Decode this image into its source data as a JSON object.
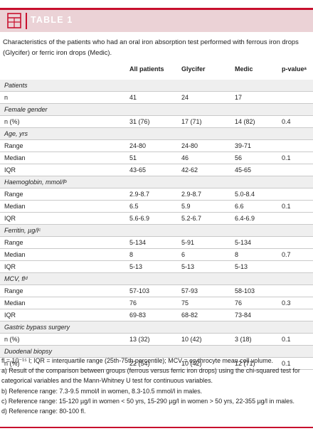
{
  "header": {
    "title": "TABLE 1"
  },
  "caption": "Characteristics of the patients who had an oral iron absorption test performed with ferrous iron drops (Glycifer) or ferric iron drops (Medic).",
  "columns": [
    "",
    "All patients",
    "Glycifer",
    "Medic",
    "p-valueᵃ"
  ],
  "rows": [
    {
      "type": "section",
      "label": "Patients"
    },
    {
      "type": "data",
      "label": "n",
      "all": "41",
      "glycifer": "24",
      "medic": "17",
      "p": ""
    },
    {
      "type": "section",
      "label": "Female gender"
    },
    {
      "type": "data",
      "label": "n (%)",
      "all": "31 (76)",
      "glycifer": "17 (71)",
      "medic": "14 (82)",
      "p": "0.4"
    },
    {
      "type": "section",
      "label": "Age, yrs"
    },
    {
      "type": "data",
      "label": "Range",
      "all": "24-80",
      "glycifer": "24-80",
      "medic": "39-71",
      "p": ""
    },
    {
      "type": "data",
      "label": "Median",
      "all": "51",
      "glycifer": "46",
      "medic": "56",
      "p": "0.1"
    },
    {
      "type": "data",
      "label": "IQR",
      "all": "43-65",
      "glycifer": "42-62",
      "medic": "45-65",
      "p": ""
    },
    {
      "type": "section",
      "label": "Haemoglobin, mmol/lᵇ"
    },
    {
      "type": "data",
      "label": "Range",
      "all": "2.9-8.7",
      "glycifer": "2.9-8.7",
      "medic": "5.0-8.4",
      "p": ""
    },
    {
      "type": "data",
      "label": "Median",
      "all": "6.5",
      "glycifer": "5.9",
      "medic": "6.6",
      "p": "0.1"
    },
    {
      "type": "data",
      "label": "IQR",
      "all": "5.6-6.9",
      "glycifer": "5.2-6.7",
      "medic": "6.4-6.9",
      "p": ""
    },
    {
      "type": "section",
      "label": "Ferritin, µg/lᶜ"
    },
    {
      "type": "data",
      "label": "Range",
      "all": "5-134",
      "glycifer": "5-91",
      "medic": "5-134",
      "p": ""
    },
    {
      "type": "data",
      "label": "Median",
      "all": "8",
      "glycifer": "6",
      "medic": "8",
      "p": "0.7"
    },
    {
      "type": "data",
      "label": "IQR",
      "all": "5-13",
      "glycifer": "5-13",
      "medic": "5-13",
      "p": ""
    },
    {
      "type": "section",
      "label": "MCV, flᵈ"
    },
    {
      "type": "data",
      "label": "Range",
      "all": "57-103",
      "glycifer": "57-93",
      "medic": "58-103",
      "p": ""
    },
    {
      "type": "data",
      "label": "Median",
      "all": "76",
      "glycifer": "75",
      "medic": "76",
      "p": "0.3"
    },
    {
      "type": "data",
      "label": "IQR",
      "all": "69-83",
      "glycifer": "68-82",
      "medic": "73-84",
      "p": ""
    },
    {
      "type": "section",
      "label": "Gastric bypass surgery"
    },
    {
      "type": "data",
      "label": "n (%)",
      "all": "13 (32)",
      "glycifer": "10 (42)",
      "medic": "3 (18)",
      "p": "0.1"
    },
    {
      "type": "section",
      "label": "Duodenal biopsy"
    },
    {
      "type": "data",
      "label": "n (%)",
      "all": "22 (54)",
      "glycifer": "10 (42)",
      "medic": "12 (71)",
      "p": "0.1"
    }
  ],
  "footnotes": [
    "fl = 10⁻¹⁵ l; IQR = interquartile range (25th-75th percentile); MCV = erythrocyte mean cell volume.",
    "a) Result of the comparison between groups (ferrous versus ferric iron drops) using the chi-squared test for categorical variables and the Mann-Whitney U test for continuous variables.",
    "b) Reference range: 7.3-9.5 mmol/l in women, 8.3-10.5 mmol/l in males.",
    "c) Reference range: 15-120 µg/l in women < 50 yrs, 15-290 µg/l in women > 50 yrs, 22-355 µg/l in males.",
    "d) Reference range: 80-100 fl."
  ],
  "colors": {
    "accent": "#c8102e",
    "header_band": "#ebd2d6",
    "section_band": "#efefef"
  }
}
